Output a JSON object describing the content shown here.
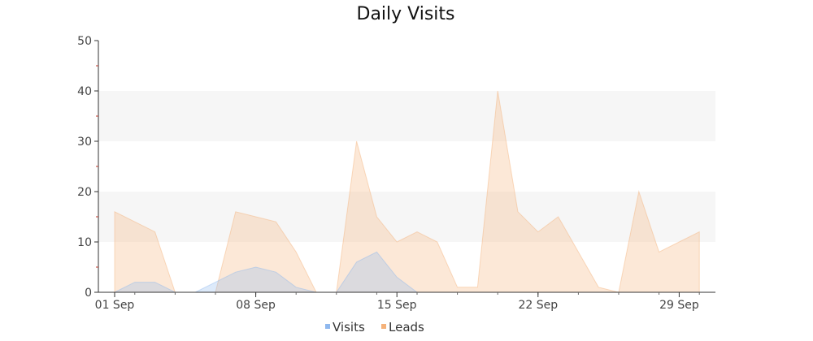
{
  "chart_data": {
    "type": "area",
    "title": "Daily Visits",
    "xlabel": "",
    "ylabel": "",
    "ylim": [
      0,
      50
    ],
    "yticks": [
      0,
      10,
      20,
      30,
      40,
      50
    ],
    "x": [
      "01 Sep",
      "02 Sep",
      "03 Sep",
      "04 Sep",
      "05 Sep",
      "06 Sep",
      "07 Sep",
      "08 Sep",
      "09 Sep",
      "10 Sep",
      "11 Sep",
      "12 Sep",
      "13 Sep",
      "14 Sep",
      "15 Sep",
      "16 Sep",
      "17 Sep",
      "18 Sep",
      "19 Sep",
      "20 Sep",
      "21 Sep",
      "22 Sep",
      "23 Sep",
      "24 Sep",
      "25 Sep",
      "26 Sep",
      "27 Sep",
      "28 Sep",
      "29 Sep",
      "30 Sep"
    ],
    "xticks": [
      "01 Sep",
      "08 Sep",
      "15 Sep",
      "22 Sep",
      "29 Sep"
    ],
    "grid_bands": true,
    "legend_position": "bottom",
    "series": [
      {
        "name": "Visits",
        "color": "#8fb8ee",
        "values": [
          0,
          2,
          2,
          0,
          0,
          2,
          4,
          5,
          4,
          1,
          0,
          0,
          6,
          8,
          3,
          0,
          0,
          0,
          0,
          0,
          0,
          0,
          0,
          0,
          0,
          0,
          0,
          0,
          0,
          0
        ]
      },
      {
        "name": "Leads",
        "color": "#f5b27a",
        "values": [
          16,
          14,
          12,
          0,
          0,
          0,
          16,
          15,
          14,
          8,
          0,
          0,
          30,
          15,
          10,
          12,
          10,
          1,
          1,
          40,
          16,
          12,
          15,
          8,
          1,
          0,
          20,
          8,
          10,
          12
        ]
      }
    ]
  }
}
